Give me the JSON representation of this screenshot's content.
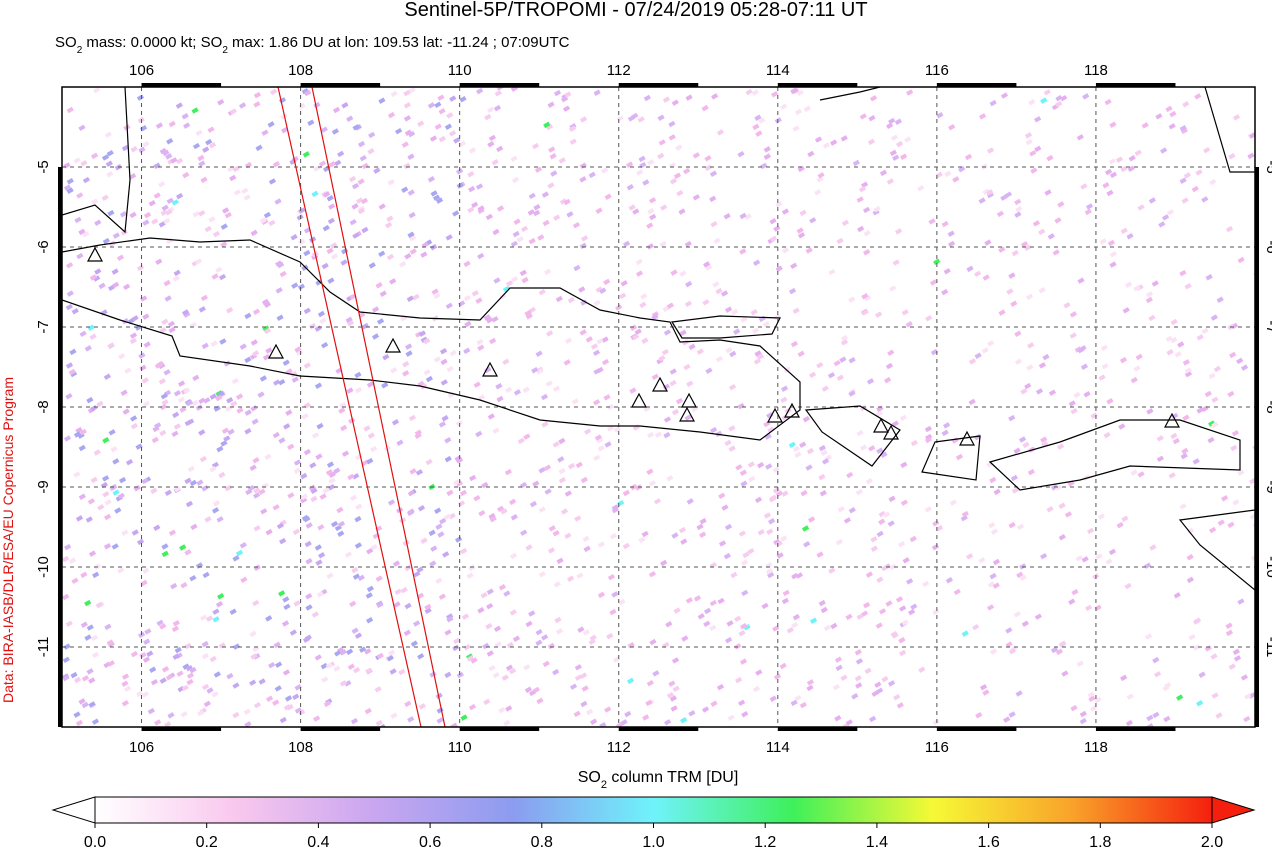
{
  "title": "Sentinel-5P/TROPOMI - 07/24/2019 05:28-07:11 UT",
  "subtitle": [
    "SO",
    "2",
    " mass: 0.0000 kt; SO",
    "2",
    " max: 1.86 DU at lon: 109.53 lat: -11.24 ; 07:09UTC"
  ],
  "map": {
    "lonlim": [
      105,
      120
    ],
    "latlim": [
      -12,
      -4
    ],
    "lonticks": [
      106,
      108,
      110,
      112,
      114,
      116,
      118
    ],
    "latticks": [
      -5,
      -6,
      -7,
      -8,
      -9,
      -10,
      -11
    ]
  },
  "colorbar": {
    "label": [
      "SO",
      "2",
      " column TRM [DU]"
    ],
    "lim": [
      0,
      2
    ],
    "ticks": [
      {
        "value": 0,
        "label": "0.0"
      },
      0.2,
      0.4,
      0.6,
      0.8,
      {
        "value": 1,
        "label": "1.0"
      },
      1.2,
      1.4,
      1.6,
      1.8,
      {
        "value": 2,
        "label": "2.0"
      }
    ],
    "colors": [
      "#ffffff",
      "#f9c8ee",
      "#c9a6f0",
      "#8c9cf0",
      "#6ff3fb",
      "#3ef05a",
      "#f6f935",
      "#f9a22a",
      "#f51f0e"
    ]
  },
  "credit": "Data: BIRA-IASB/DLR/ESA/EU Copernicus Program"
}
